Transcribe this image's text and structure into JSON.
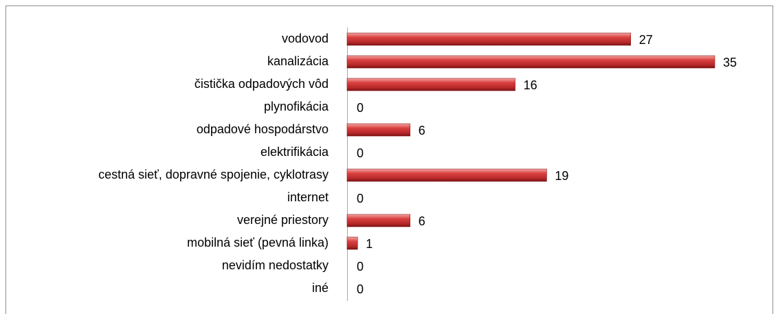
{
  "chart_data": {
    "type": "bar",
    "orientation": "horizontal",
    "categories": [
      "vodovod",
      "kanalizácia",
      "čistička odpadových vôd",
      "plynofikácia",
      "odpadové hospodárstvo",
      "elektrifikácia",
      "cestná sieť, dopravné spojenie, cyklotrasy",
      "internet",
      "verejné priestory",
      "mobilná sieť (pevná linka)",
      "nevidím nedostatky",
      "iné"
    ],
    "values": [
      27,
      35,
      16,
      0,
      6,
      0,
      19,
      0,
      6,
      1,
      0,
      0
    ],
    "color": "#c0302f",
    "xlim": [
      0,
      35
    ]
  }
}
